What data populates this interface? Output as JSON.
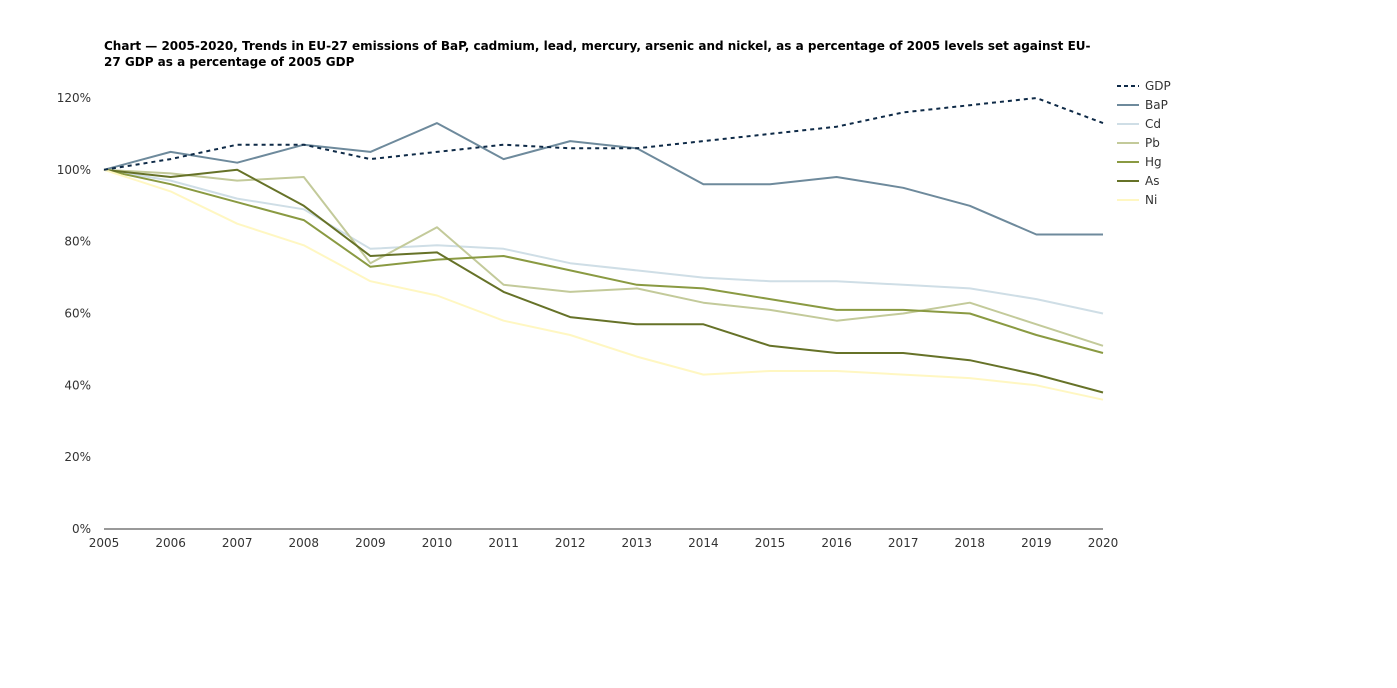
{
  "chart_data": {
    "type": "line",
    "title": "Chart — 2005-2020, Trends in EU-27 emissions of BaP, cadmium, lead, mercury, arsenic and nickel, as a percentage of 2005 levels set against EU-27 GDP as a percentage of 2005 GDP",
    "xlabel": "",
    "ylabel": "",
    "x": [
      "2005",
      "2006",
      "2007",
      "2008",
      "2009",
      "2010",
      "2011",
      "2012",
      "2013",
      "2014",
      "2015",
      "2016",
      "2017",
      "2018",
      "2019",
      "2020"
    ],
    "xlim": [
      2005,
      2020
    ],
    "ylim": [
      0,
      120
    ],
    "y_tick_values": [
      0,
      20,
      40,
      60,
      80,
      100,
      120
    ],
    "y_tick_labels": [
      "0%",
      "20%",
      "40%",
      "60%",
      "80%",
      "100%",
      "120%"
    ],
    "grid": false,
    "legend_position": "right",
    "series": [
      {
        "name": "GDP",
        "color": "#0e2a47",
        "dash": true,
        "values": [
          100,
          103,
          107,
          107,
          103,
          105,
          107,
          106,
          106,
          108,
          110,
          112,
          116,
          118,
          120,
          113
        ]
      },
      {
        "name": "BaP",
        "color": "#6e8a9c",
        "dash": false,
        "values": [
          100,
          105,
          102,
          107,
          105,
          113,
          103,
          108,
          106,
          96,
          96,
          98,
          95,
          90,
          82,
          82
        ]
      },
      {
        "name": "Cd",
        "color": "#cfdee6",
        "dash": false,
        "values": [
          100,
          97,
          92,
          89,
          78,
          79,
          78,
          74,
          72,
          70,
          69,
          69,
          68,
          67,
          64,
          60
        ]
      },
      {
        "name": "Pb",
        "color": "#c3ca9a",
        "dash": false,
        "values": [
          100,
          99,
          97,
          98,
          74,
          84,
          68,
          66,
          67,
          63,
          61,
          58,
          60,
          63,
          57,
          51
        ]
      },
      {
        "name": "Hg",
        "color": "#8a9a42",
        "dash": false,
        "values": [
          100,
          96,
          91,
          86,
          73,
          75,
          76,
          72,
          68,
          67,
          64,
          61,
          61,
          60,
          54,
          49
        ]
      },
      {
        "name": "As",
        "color": "#667228",
        "dash": false,
        "values": [
          100,
          98,
          100,
          90,
          76,
          77,
          66,
          59,
          57,
          57,
          51,
          49,
          49,
          47,
          43,
          38
        ]
      },
      {
        "name": "Ni",
        "color": "#fff7c2",
        "dash": false,
        "values": [
          100,
          94,
          85,
          79,
          69,
          65,
          58,
          54,
          48,
          43,
          44,
          44,
          43,
          42,
          40,
          36
        ]
      }
    ]
  }
}
